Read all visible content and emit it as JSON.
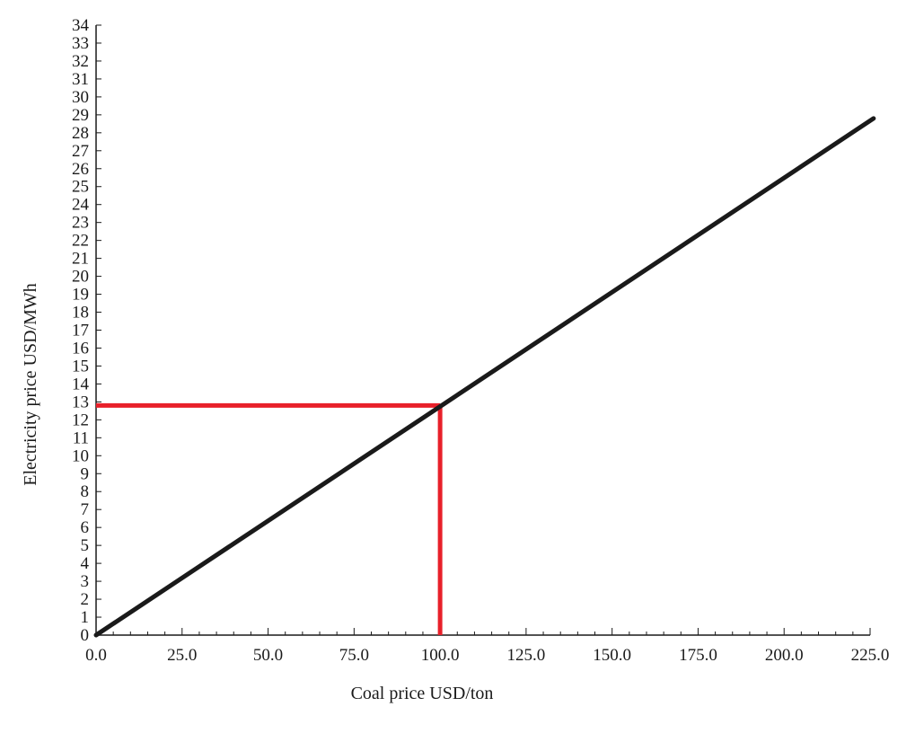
{
  "chart_data": {
    "type": "line",
    "title": "",
    "xlabel": "Coal price USD/ton",
    "ylabel": "Electricity price USD/MWh",
    "xlim": [
      0,
      225
    ],
    "ylim": [
      0,
      34
    ],
    "x_ticks": [
      "0.0",
      "25.0",
      "50.0",
      "75.0",
      "100.0",
      "125.0",
      "150.0",
      "175.0",
      "200.0",
      "225.0"
    ],
    "y_ticks": [
      "0",
      "1",
      "2",
      "3",
      "4",
      "5",
      "6",
      "7",
      "8",
      "9",
      "10",
      "11",
      "12",
      "13",
      "14",
      "15",
      "16",
      "17",
      "18",
      "19",
      "20",
      "21",
      "22",
      "23",
      "24",
      "25",
      "26",
      "27",
      "28",
      "29",
      "30",
      "31",
      "32",
      "33",
      "34"
    ],
    "grid": false,
    "series": [
      {
        "x": [
          0,
          226
        ],
        "y": [
          0,
          28.8
        ],
        "color": "#1a1a1a"
      }
    ],
    "annotations": [
      {
        "type": "reference-lines",
        "x": 100,
        "y": 12.8,
        "color": "#e8202a"
      }
    ]
  }
}
